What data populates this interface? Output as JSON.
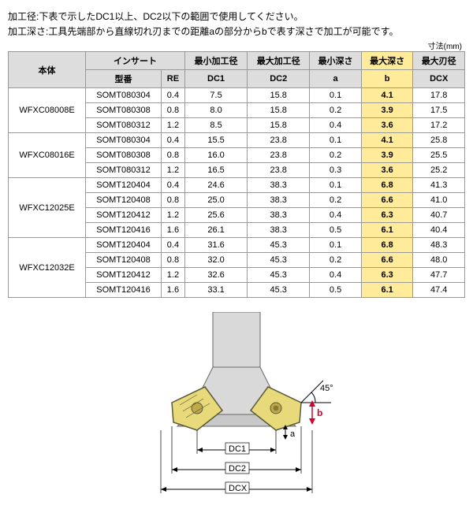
{
  "desc": [
    "加工径:下表で示したDC1以上、DC2以下の範囲で使用してください。",
    "加工深さ:工具先端部から直線切れ刃までの距離aの部分からbで表す深さで加工が可能です。"
  ],
  "unit_label": "寸法(mm)",
  "header": {
    "body": "本体",
    "insert": "インサート",
    "model": "型番",
    "re": "RE",
    "dc1_h": "最小加工径",
    "dc2_h": "最大加工径",
    "a_h": "最小深さ",
    "b_h": "最大深さ",
    "dcx_h": "最大刃径",
    "dc1": "DC1",
    "dc2": "DC2",
    "a": "a",
    "b": "b",
    "dcx": "DCX"
  },
  "groups": [
    {
      "body": "WFXC08008E",
      "rows": [
        {
          "model": "SOMT080304",
          "re": "0.4",
          "dc1": "7.5",
          "dc2": "15.8",
          "a": "0.1",
          "b": "4.1",
          "dcx": "17.8"
        },
        {
          "model": "SOMT080308",
          "re": "0.8",
          "dc1": "8.0",
          "dc2": "15.8",
          "a": "0.2",
          "b": "3.9",
          "dcx": "17.5"
        },
        {
          "model": "SOMT080312",
          "re": "1.2",
          "dc1": "8.5",
          "dc2": "15.8",
          "a": "0.4",
          "b": "3.6",
          "dcx": "17.2"
        }
      ]
    },
    {
      "body": "WFXC08016E",
      "rows": [
        {
          "model": "SOMT080304",
          "re": "0.4",
          "dc1": "15.5",
          "dc2": "23.8",
          "a": "0.1",
          "b": "4.1",
          "dcx": "25.8"
        },
        {
          "model": "SOMT080308",
          "re": "0.8",
          "dc1": "16.0",
          "dc2": "23.8",
          "a": "0.2",
          "b": "3.9",
          "dcx": "25.5"
        },
        {
          "model": "SOMT080312",
          "re": "1.2",
          "dc1": "16.5",
          "dc2": "23.8",
          "a": "0.3",
          "b": "3.6",
          "dcx": "25.2"
        }
      ]
    },
    {
      "body": "WFXC12025E",
      "rows": [
        {
          "model": "SOMT120404",
          "re": "0.4",
          "dc1": "24.6",
          "dc2": "38.3",
          "a": "0.1",
          "b": "6.8",
          "dcx": "41.3"
        },
        {
          "model": "SOMT120408",
          "re": "0.8",
          "dc1": "25.0",
          "dc2": "38.3",
          "a": "0.2",
          "b": "6.6",
          "dcx": "41.0"
        },
        {
          "model": "SOMT120412",
          "re": "1.2",
          "dc1": "25.6",
          "dc2": "38.3",
          "a": "0.4",
          "b": "6.3",
          "dcx": "40.7"
        },
        {
          "model": "SOMT120416",
          "re": "1.6",
          "dc1": "26.1",
          "dc2": "38.3",
          "a": "0.5",
          "b": "6.1",
          "dcx": "40.4"
        }
      ]
    },
    {
      "body": "WFXC12032E",
      "rows": [
        {
          "model": "SOMT120404",
          "re": "0.4",
          "dc1": "31.6",
          "dc2": "45.3",
          "a": "0.1",
          "b": "6.8",
          "dcx": "48.3"
        },
        {
          "model": "SOMT120408",
          "re": "0.8",
          "dc1": "32.0",
          "dc2": "45.3",
          "a": "0.2",
          "b": "6.6",
          "dcx": "48.0"
        },
        {
          "model": "SOMT120412",
          "re": "1.2",
          "dc1": "32.6",
          "dc2": "45.3",
          "a": "0.4",
          "b": "6.3",
          "dcx": "47.7"
        },
        {
          "model": "SOMT120416",
          "re": "1.6",
          "dc1": "33.1",
          "dc2": "45.3",
          "a": "0.5",
          "b": "6.1",
          "dcx": "47.4"
        }
      ]
    }
  ],
  "diagram": {
    "dc1": "DC1",
    "dc2": "DC2",
    "dcx": "DCX",
    "a": "a",
    "b": "b",
    "angle": "45°",
    "colors": {
      "insert_fill": "#e8d97a",
      "insert_stroke": "#5a5a3a",
      "body_fill": "#d9d9d9",
      "body_stroke": "#666",
      "dim": "#000",
      "b_red": "#d4002a"
    }
  }
}
